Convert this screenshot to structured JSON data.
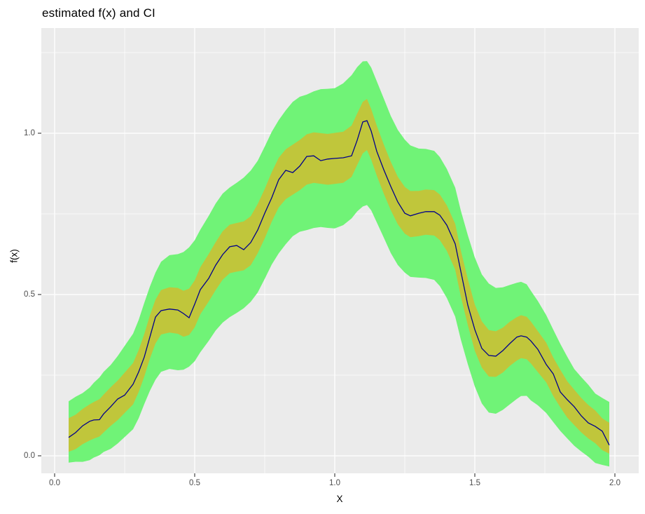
{
  "title": "estimated f(x) and CI",
  "x_axis": {
    "label": "X",
    "ticks": [
      "0.0",
      "0.5",
      "1.0",
      "1.5",
      "2.0"
    ],
    "tick_values": [
      0,
      0.5,
      1.0,
      1.5,
      2.0
    ]
  },
  "y_axis": {
    "label": "f(x)",
    "ticks": [
      "1.0",
      "0.5",
      "0.0"
    ],
    "tick_values": [
      1.0,
      0.5,
      0.0
    ]
  },
  "colors": {
    "panel_background": "#EBEBEB",
    "gridline": "#FFFFFF",
    "outer_band": "#70F377",
    "inner_band": "#C0C63B",
    "estimate_line": "#00008B",
    "tick_mark": "#333333",
    "tick_text": "#4D4D4D",
    "title_text": "#000000"
  },
  "chart_data": {
    "type": "line",
    "title": "estimated f(x) and CI",
    "xlabel": "X",
    "ylabel": "f(x)",
    "xlim": [
      -0.05,
      2.085
    ],
    "ylim": [
      -0.054,
      1.326
    ],
    "x_major_ticks": [
      0,
      0.5,
      1.0,
      1.5,
      2.0
    ],
    "x_minor_ticks": [
      0.25,
      0.75,
      1.25,
      1.75
    ],
    "y_major_ticks": [
      0,
      0.5,
      1.0
    ],
    "y_minor_ticks": [
      0.25,
      0.75,
      1.25
    ],
    "grid": "white major+minor gridlines on grey panel",
    "legend": "none",
    "series": [
      {
        "name": "estimated f(x)",
        "x": [
          0.05,
          0.075,
          0.1,
          0.125,
          0.14,
          0.16,
          0.175,
          0.2,
          0.225,
          0.25,
          0.28,
          0.3,
          0.32,
          0.34,
          0.36,
          0.38,
          0.41,
          0.44,
          0.46,
          0.48,
          0.5,
          0.52,
          0.55,
          0.575,
          0.6,
          0.625,
          0.65,
          0.675,
          0.7,
          0.725,
          0.75,
          0.775,
          0.8,
          0.825,
          0.85,
          0.875,
          0.9,
          0.925,
          0.95,
          0.975,
          1.0,
          1.03,
          1.06,
          1.08,
          1.1,
          1.115,
          1.13,
          1.15,
          1.175,
          1.2,
          1.225,
          1.25,
          1.27,
          1.3,
          1.325,
          1.355,
          1.375,
          1.4,
          1.43,
          1.45,
          1.475,
          1.5,
          1.525,
          1.55,
          1.575,
          1.6,
          1.625,
          1.65,
          1.665,
          1.685,
          1.7,
          1.725,
          1.755,
          1.78,
          1.805,
          1.83,
          1.855,
          1.88,
          1.905,
          1.93,
          1.955,
          1.98
        ],
        "y": [
          0.057,
          0.072,
          0.093,
          0.107,
          0.111,
          0.112,
          0.13,
          0.152,
          0.176,
          0.188,
          0.222,
          0.26,
          0.306,
          0.368,
          0.43,
          0.45,
          0.455,
          0.452,
          0.441,
          0.428,
          0.47,
          0.515,
          0.55,
          0.591,
          0.624,
          0.648,
          0.652,
          0.639,
          0.661,
          0.7,
          0.752,
          0.8,
          0.856,
          0.885,
          0.878,
          0.898,
          0.928,
          0.93,
          0.915,
          0.92,
          0.922,
          0.924,
          0.93,
          0.978,
          1.035,
          1.039,
          1.007,
          0.944,
          0.887,
          0.835,
          0.787,
          0.752,
          0.744,
          0.752,
          0.757,
          0.757,
          0.746,
          0.715,
          0.657,
          0.572,
          0.467,
          0.391,
          0.333,
          0.311,
          0.309,
          0.326,
          0.348,
          0.368,
          0.372,
          0.368,
          0.356,
          0.33,
          0.283,
          0.254,
          0.198,
          0.174,
          0.152,
          0.124,
          0.102,
          0.091,
          0.076,
          0.033
        ]
      }
    ],
    "bands": [
      {
        "name": "outer confidence band",
        "color": "#70F377",
        "around": "estimated f(x)",
        "half_width_by_x": [
          [
            0.05,
            0.095
          ],
          [
            0.2,
            0.13
          ],
          [
            0.4,
            0.175
          ],
          [
            0.6,
            0.2
          ],
          [
            0.9,
            0.21
          ],
          [
            1.1,
            0.225
          ],
          [
            1.3,
            0.2
          ],
          [
            1.55,
            0.2
          ],
          [
            1.7,
            0.17
          ],
          [
            1.85,
            0.12
          ],
          [
            1.98,
            0.1
          ]
        ]
      },
      {
        "name": "inner confidence band",
        "color": "#C0C63B",
        "around": "estimated f(x)",
        "half_width_by_x": [
          [
            0.05,
            0.052
          ],
          [
            0.2,
            0.06
          ],
          [
            0.4,
            0.07
          ],
          [
            0.6,
            0.075
          ],
          [
            0.9,
            0.078
          ],
          [
            1.1,
            0.08
          ],
          [
            1.3,
            0.07
          ],
          [
            1.55,
            0.072
          ],
          [
            1.7,
            0.065
          ],
          [
            1.85,
            0.055
          ],
          [
            1.98,
            0.048
          ]
        ]
      }
    ]
  }
}
